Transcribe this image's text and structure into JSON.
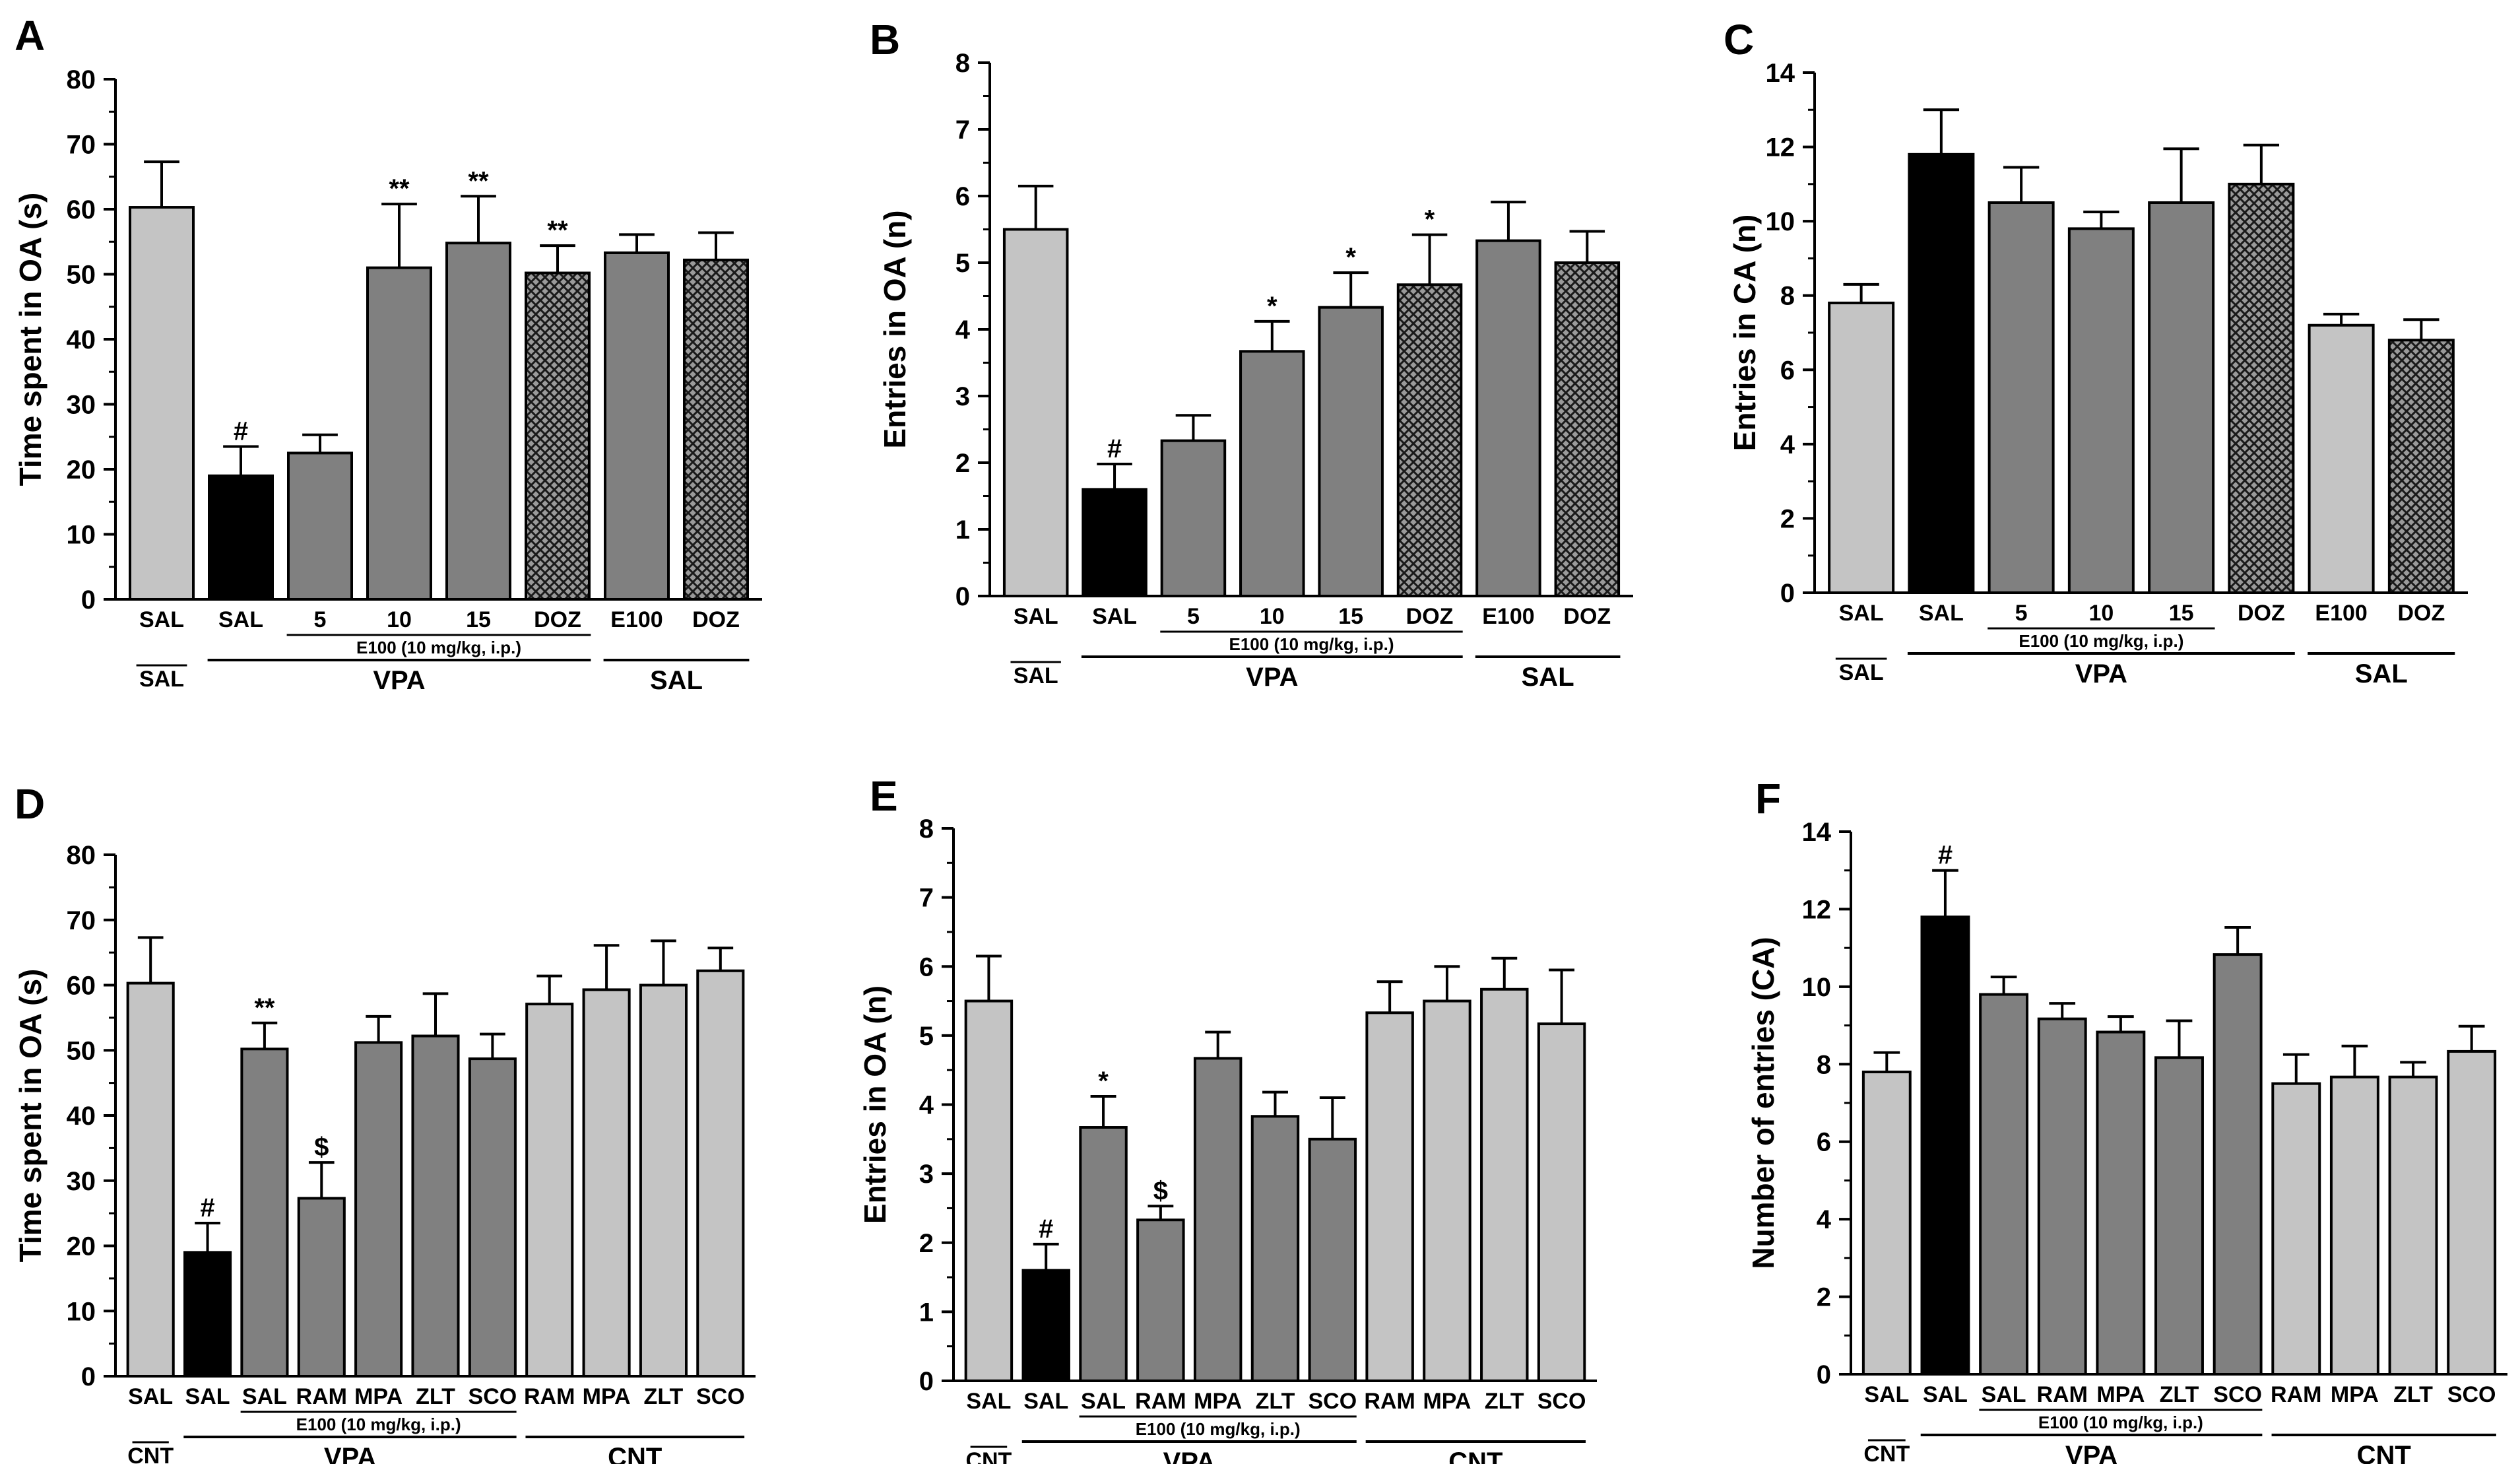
{
  "panels": [
    {
      "letter": "A",
      "ylabel": "Time spent in OA (s)",
      "yticks": [
        "0",
        "10",
        "20",
        "30",
        "40",
        "50",
        "60",
        "70",
        "80"
      ],
      "chart_data": {
        "type": "bar",
        "ylim": [
          0,
          80
        ],
        "yticks": [
          0,
          10,
          20,
          30,
          40,
          50,
          60,
          70,
          80
        ],
        "categories": [
          "SAL",
          "SAL",
          "5",
          "10",
          "15",
          "DOZ",
          "E100",
          "DOZ"
        ],
        "values": [
          60.3,
          19.0,
          22.5,
          51.0,
          54.8,
          50.2,
          53.3,
          52.2
        ],
        "errors": [
          7.0,
          4.5,
          2.8,
          9.8,
          7.2,
          4.2,
          2.8,
          4.2
        ],
        "annotations": [
          "",
          "#",
          "",
          "**",
          "**",
          "**",
          "",
          ""
        ],
        "fills": [
          "light",
          "black",
          "dark",
          "dark",
          "dark",
          "hatch",
          "dark",
          "hatch"
        ]
      },
      "groups": [
        {
          "label": "E100 (10 mg/kg, i.p.)",
          "from": 2,
          "to": 5,
          "row": 1
        },
        {
          "label": "SAL",
          "from": 0,
          "to": 0,
          "row": 2,
          "overline": true
        },
        {
          "label": "VPA",
          "from": 1,
          "to": 5,
          "row": 2
        },
        {
          "label": "SAL",
          "from": 6,
          "to": 7,
          "row": 2
        }
      ]
    },
    {
      "letter": "B",
      "ylabel": "Entries in OA (n)",
      "yticks": [
        "0",
        "1",
        "2",
        "3",
        "4",
        "5",
        "6",
        "7",
        "8"
      ],
      "chart_data": {
        "type": "bar",
        "ylim": [
          0,
          8
        ],
        "yticks": [
          0,
          1,
          2,
          3,
          4,
          5,
          6,
          7,
          8
        ],
        "categories": [
          "SAL",
          "SAL",
          "5",
          "10",
          "15",
          "DOZ",
          "E100",
          "DOZ"
        ],
        "values": [
          5.5,
          1.6,
          2.33,
          3.67,
          4.33,
          4.67,
          5.33,
          5.0
        ],
        "errors": [
          0.65,
          0.38,
          0.38,
          0.45,
          0.52,
          0.75,
          0.58,
          0.47
        ],
        "annotations": [
          "",
          "#",
          "",
          "*",
          "*",
          "*",
          "",
          ""
        ],
        "fills": [
          "light",
          "black",
          "dark",
          "dark",
          "dark",
          "hatch",
          "dark",
          "hatch"
        ]
      },
      "groups": [
        {
          "label": "E100 (10 mg/kg, i.p.)",
          "from": 2,
          "to": 5,
          "row": 1
        },
        {
          "label": "SAL",
          "from": 0,
          "to": 0,
          "row": 2,
          "overline": true
        },
        {
          "label": "VPA",
          "from": 1,
          "to": 5,
          "row": 2
        },
        {
          "label": "SAL",
          "from": 6,
          "to": 7,
          "row": 2
        }
      ]
    },
    {
      "letter": "C",
      "ylabel": "Entries in CA (n)",
      "yticks": [
        "0",
        "2",
        "4",
        "6",
        "8",
        "10",
        "12",
        "14"
      ],
      "chart_data": {
        "type": "bar",
        "ylim": [
          0,
          14
        ],
        "yticks": [
          0,
          2,
          4,
          6,
          8,
          10,
          12,
          14
        ],
        "categories": [
          "SAL",
          "SAL",
          "5",
          "10",
          "15",
          "DOZ",
          "E100",
          "DOZ"
        ],
        "values": [
          7.8,
          11.8,
          10.5,
          9.8,
          10.5,
          11.0,
          7.2,
          6.8
        ],
        "errors": [
          0.5,
          1.2,
          0.95,
          0.45,
          1.45,
          1.05,
          0.3,
          0.55
        ],
        "annotations": [
          "",
          "",
          "",
          "",
          "",
          "",
          "",
          ""
        ],
        "fills": [
          "light",
          "black",
          "dark",
          "dark",
          "dark",
          "hatch",
          "light",
          "hatch"
        ]
      },
      "groups": [
        {
          "label": "E100 (10 mg/kg, i.p.)",
          "from": 2,
          "to": 4,
          "row": 1
        },
        {
          "label": "SAL",
          "from": 0,
          "to": 0,
          "row": 2,
          "overline": true
        },
        {
          "label": "VPA",
          "from": 1,
          "to": 5,
          "row": 2
        },
        {
          "label": "SAL",
          "from": 6,
          "to": 7,
          "row": 2
        }
      ]
    },
    {
      "letter": "D",
      "ylabel": "Time spent in OA (s)",
      "yticks": [
        "0",
        "10",
        "20",
        "30",
        "40",
        "50",
        "60",
        "70",
        "80"
      ],
      "chart_data": {
        "type": "bar",
        "ylim": [
          0,
          80
        ],
        "yticks": [
          0,
          10,
          20,
          30,
          40,
          50,
          60,
          70,
          80
        ],
        "categories": [
          "SAL",
          "SAL",
          "SAL",
          "RAM",
          "MPA",
          "ZLT",
          "SCO",
          "RAM",
          "MPA",
          "ZLT",
          "SCO"
        ],
        "values": [
          60.3,
          19.0,
          50.2,
          27.3,
          51.2,
          52.2,
          48.7,
          57.1,
          59.3,
          60.0,
          62.2
        ],
        "errors": [
          7.0,
          4.5,
          4.0,
          5.5,
          4.0,
          6.5,
          3.8,
          4.3,
          6.8,
          6.8,
          3.5
        ],
        "annotations": [
          "",
          "#",
          "**",
          "$",
          "",
          "",
          "",
          "",
          "",
          "",
          ""
        ],
        "fills": [
          "light",
          "black",
          "dark",
          "dark",
          "dark",
          "dark",
          "dark",
          "light",
          "light",
          "light",
          "light"
        ]
      },
      "groups": [
        {
          "label": "E100 (10 mg/kg, i.p.)",
          "from": 2,
          "to": 6,
          "row": 1
        },
        {
          "label": "CNT",
          "from": 0,
          "to": 0,
          "row": 2,
          "overline": true
        },
        {
          "label": "VPA",
          "from": 1,
          "to": 6,
          "row": 2
        },
        {
          "label": "CNT",
          "from": 7,
          "to": 10,
          "row": 2
        }
      ]
    },
    {
      "letter": "E",
      "ylabel": "Entries in OA (n)",
      "yticks": [
        "0",
        "1",
        "2",
        "3",
        "4",
        "5",
        "6",
        "7",
        "8"
      ],
      "chart_data": {
        "type": "bar",
        "ylim": [
          0,
          8
        ],
        "yticks": [
          0,
          1,
          2,
          3,
          4,
          5,
          6,
          7,
          8
        ],
        "categories": [
          "SAL",
          "SAL",
          "SAL",
          "RAM",
          "MPA",
          "ZLT",
          "SCO",
          "RAM",
          "MPA",
          "ZLT",
          "SCO"
        ],
        "values": [
          5.5,
          1.6,
          3.67,
          2.33,
          4.67,
          3.83,
          3.5,
          5.33,
          5.5,
          5.67,
          5.17
        ],
        "errors": [
          0.65,
          0.38,
          0.45,
          0.2,
          0.38,
          0.35,
          0.6,
          0.45,
          0.5,
          0.45,
          0.78
        ],
        "annotations": [
          "",
          "#",
          "*",
          "$",
          "",
          "",
          "",
          "",
          "",
          "",
          ""
        ],
        "fills": [
          "light",
          "black",
          "dark",
          "dark",
          "dark",
          "dark",
          "dark",
          "light",
          "light",
          "light",
          "light"
        ]
      },
      "groups": [
        {
          "label": "E100 (10 mg/kg, i.p.)",
          "from": 2,
          "to": 6,
          "row": 1
        },
        {
          "label": "CNT",
          "from": 0,
          "to": 0,
          "row": 2,
          "overline": true
        },
        {
          "label": "VPA",
          "from": 1,
          "to": 6,
          "row": 2
        },
        {
          "label": "CNT",
          "from": 7,
          "to": 10,
          "row": 2
        }
      ]
    },
    {
      "letter": "F",
      "ylabel": "Number of entries (CA)",
      "yticks": [
        "0",
        "2",
        "4",
        "6",
        "8",
        "10",
        "12",
        "14"
      ],
      "chart_data": {
        "type": "bar",
        "ylim": [
          0,
          14
        ],
        "yticks": [
          0,
          2,
          4,
          6,
          8,
          10,
          12,
          14
        ],
        "categories": [
          "SAL",
          "SAL",
          "SAL",
          "RAM",
          "MPA",
          "ZLT",
          "SCO",
          "RAM",
          "MPA",
          "ZLT",
          "SCO"
        ],
        "values": [
          7.8,
          11.8,
          9.8,
          9.17,
          8.83,
          8.17,
          10.83,
          7.5,
          7.67,
          7.67,
          8.33
        ],
        "errors": [
          0.5,
          1.2,
          0.45,
          0.4,
          0.4,
          0.95,
          0.7,
          0.75,
          0.8,
          0.38,
          0.65
        ],
        "annotations": [
          "",
          "#",
          "",
          "",
          "",
          "",
          "",
          "",
          "",
          "",
          ""
        ],
        "fills": [
          "light",
          "black",
          "dark",
          "dark",
          "dark",
          "dark",
          "dark",
          "light",
          "light",
          "light",
          "light"
        ]
      },
      "groups": [
        {
          "label": "E100 (10 mg/kg, i.p.)",
          "from": 2,
          "to": 6,
          "row": 1
        },
        {
          "label": "CNT",
          "from": 0,
          "to": 0,
          "row": 2,
          "overline": true
        },
        {
          "label": "VPA",
          "from": 1,
          "to": 6,
          "row": 2
        },
        {
          "label": "CNT",
          "from": 7,
          "to": 10,
          "row": 2
        }
      ]
    }
  ],
  "colors": {
    "light": "#c4c4c4",
    "dark": "#808080",
    "black": "#000000",
    "hatch_bg": "#9a9a9a",
    "hatch_line": "#1a1a1a",
    "axis": "#000000"
  }
}
